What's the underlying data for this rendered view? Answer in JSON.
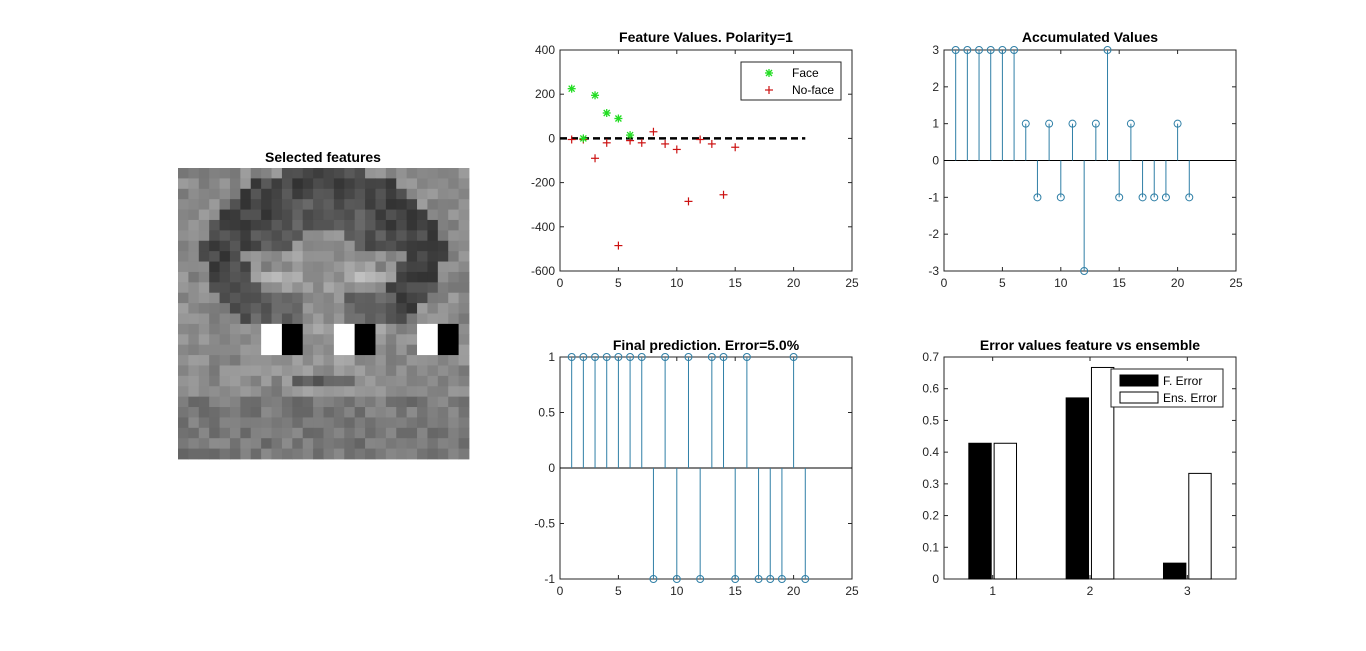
{
  "colors": {
    "stem": "#2f7fa6",
    "face_marker": "#22dd22",
    "noface_marker": "#cc1111",
    "bar_feature": "#000000",
    "bar_ensemble": "#ffffff",
    "feature_white": "#ffffff",
    "feature_black": "#000000"
  },
  "image_panel": {
    "title": "Selected features",
    "grid_size": 28,
    "features": [
      {
        "col": 8,
        "row": 15
      },
      {
        "col": 15,
        "row": 15
      },
      {
        "col": 23,
        "row": 15
      }
    ]
  },
  "chart_data": [
    {
      "id": "feature-values",
      "type": "scatter",
      "title": "Feature Values. Polarity=1",
      "xlim": [
        0,
        25
      ],
      "ylim": [
        -600,
        400
      ],
      "xticks": [
        0,
        5,
        10,
        15,
        20,
        25
      ],
      "yticks": [
        400,
        200,
        0,
        -200,
        -400,
        -600
      ],
      "legend": {
        "position": "top-right",
        "entries": [
          "Face",
          "No-face"
        ]
      },
      "series": [
        {
          "name": "Face",
          "marker": "star",
          "x": [
            1,
            2,
            3,
            4,
            5,
            6
          ],
          "y": [
            225,
            0,
            195,
            115,
            90,
            15
          ]
        },
        {
          "name": "No-face",
          "marker": "plus",
          "x": [
            1,
            2,
            3,
            4,
            5,
            6,
            7,
            8,
            9,
            10,
            11,
            12,
            13,
            14,
            15
          ],
          "y": [
            -5,
            -5,
            -90,
            -20,
            -485,
            -10,
            -20,
            30,
            -25,
            -50,
            -285,
            -5,
            -25,
            -255,
            -40
          ]
        }
      ],
      "threshold": {
        "y": 0,
        "x_from": 0,
        "x_to": 21,
        "style": "dashed"
      }
    },
    {
      "id": "accumulated-values",
      "type": "stem",
      "title": "Accumulated Values",
      "xlim": [
        0,
        25
      ],
      "ylim": [
        -3,
        3
      ],
      "xticks": [
        0,
        5,
        10,
        15,
        20,
        25
      ],
      "yticks": [
        3,
        2,
        1,
        0,
        -1,
        -2,
        -3
      ],
      "x": [
        1,
        2,
        3,
        4,
        5,
        6,
        7,
        8,
        9,
        10,
        11,
        12,
        13,
        14,
        15,
        16,
        17,
        18,
        19,
        20,
        21
      ],
      "y": [
        3,
        3,
        3,
        3,
        3,
        3,
        1,
        -1,
        1,
        -1,
        1,
        -3,
        1,
        3,
        -1,
        1,
        -1,
        -1,
        -1,
        1,
        -1
      ]
    },
    {
      "id": "final-prediction",
      "type": "stem",
      "title": "Final prediction. Error=5.0%",
      "xlim": [
        0,
        25
      ],
      "ylim": [
        -1,
        1
      ],
      "xticks": [
        0,
        5,
        10,
        15,
        20,
        25
      ],
      "yticks": [
        1,
        0.5,
        0,
        -0.5,
        -1
      ],
      "x": [
        1,
        2,
        3,
        4,
        5,
        6,
        7,
        8,
        9,
        10,
        11,
        12,
        13,
        14,
        15,
        16,
        17,
        18,
        19,
        20,
        21
      ],
      "y": [
        1,
        1,
        1,
        1,
        1,
        1,
        1,
        -1,
        1,
        -1,
        1,
        -1,
        1,
        1,
        -1,
        1,
        -1,
        -1,
        -1,
        1,
        -1
      ]
    },
    {
      "id": "error-values",
      "type": "bar",
      "title": "Error values feature vs ensemble",
      "categories": [
        "1",
        "2",
        "3"
      ],
      "ylim": [
        0,
        0.7
      ],
      "yticks": [
        0.7,
        0.6,
        0.5,
        0.4,
        0.3,
        0.2,
        0.1,
        0
      ],
      "legend": {
        "position": "top-right",
        "entries": [
          "F. Error",
          "Ens. Error"
        ]
      },
      "series": [
        {
          "name": "F. Error",
          "values": [
            0.428,
            0.571,
            0.05
          ]
        },
        {
          "name": "Ens. Error",
          "values": [
            0.428,
            0.667,
            0.333
          ]
        }
      ]
    }
  ]
}
